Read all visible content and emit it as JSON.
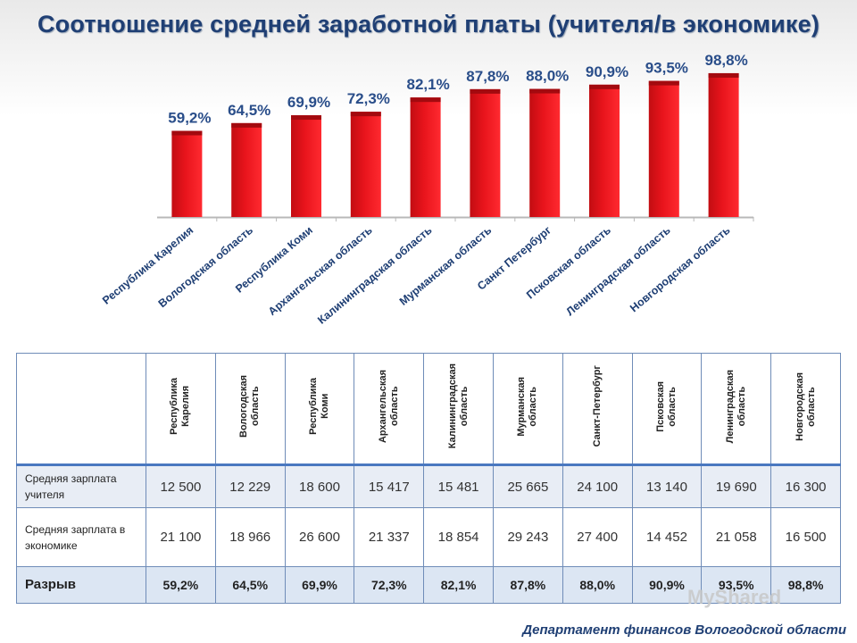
{
  "title": "Соотношение средней заработной платы (учителя/в экономике)",
  "chart_data": {
    "type": "bar",
    "categories": [
      "Республика Карелия",
      "Вологодская область",
      "Республика Коми",
      "Архангельская область",
      "Калининградская область",
      "Мурманская область",
      "Санкт Петербург",
      "Псковская область",
      "Ленинградская область",
      "Новгородская область"
    ],
    "values": [
      59.2,
      64.5,
      69.9,
      72.3,
      82.1,
      87.8,
      88.0,
      90.9,
      93.5,
      98.8
    ],
    "data_labels": [
      "59,2%",
      "64,5%",
      "69,9%",
      "72,3%",
      "82,1%",
      "87,8%",
      "88,0%",
      "90,9%",
      "93,5%",
      "98,8%"
    ],
    "ylim": [
      0,
      100
    ],
    "xlabel": "",
    "ylabel": "",
    "bar_color": "#e8141c"
  },
  "table": {
    "headers": [
      "Республика\nКарелия",
      "Вологодская\nобласть",
      "Республика\nКоми",
      "Архангельская\nобласть",
      "Калининградская\nобласть",
      "Мурманская\nобласть",
      "Санкт-Петербург",
      "Псковская\nобласть",
      "Ленинградская\nобласть",
      "Новгородская\nобласть"
    ],
    "rows": [
      {
        "label": "Средняя зарплата учителя",
        "values": [
          "12 500",
          "12 229",
          "18 600",
          "15 417",
          "15 481",
          "25 665",
          "24 100",
          "13 140",
          "19 690",
          "16 300"
        ]
      },
      {
        "label": "Средняя зарплата в экономике",
        "values": [
          "21 100",
          "18 966",
          "26 600",
          "21 337",
          "18 854",
          "29 243",
          "27 400",
          "14 452",
          "21 058",
          "16 500"
        ]
      },
      {
        "label": "Разрыв",
        "values": [
          "59,2%",
          "64,5%",
          "69,9%",
          "72,3%",
          "82,1%",
          "87,8%",
          "88,0%",
          "90,9%",
          "93,5%",
          "98,8%"
        ]
      }
    ]
  },
  "footer": "Департамент финансов Вологодской области",
  "watermark": "MyShared"
}
